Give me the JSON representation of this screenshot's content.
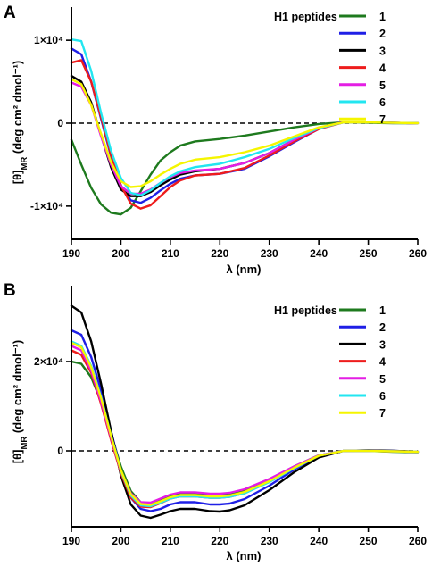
{
  "colors": {
    "s1": "#1e7a1e",
    "s2": "#1f1fe6",
    "s3": "#000000",
    "s4": "#ee1c1c",
    "s5": "#e41ee4",
    "s6": "#22e6f0",
    "s7": "#f5f500"
  },
  "chart_data": [
    {
      "panel": "A",
      "type": "line",
      "xlabel": "λ (nm)",
      "ylabel_main": "[θ]",
      "ylabel_sub": "MR",
      "ylabel_unit": " (deg cm² dmol⁻¹)",
      "legend_title": "H1 peptides",
      "xlim": [
        190,
        260
      ],
      "ylim": [
        -14000,
        14000
      ],
      "xticks": [
        190,
        200,
        210,
        220,
        230,
        240,
        250,
        260
      ],
      "xtick_labels": [
        "190",
        "200",
        "210",
        "220",
        "230",
        "240",
        "250",
        "260"
      ],
      "yticks": [
        10000,
        0,
        -10000
      ],
      "ytick_labels": [
        "1×10⁴",
        "0",
        "-1×10⁴"
      ],
      "x": [
        190,
        192,
        194,
        196,
        198,
        200,
        202,
        204,
        206,
        208,
        210,
        212,
        215,
        220,
        225,
        230,
        235,
        240,
        245,
        250,
        255,
        260
      ],
      "series": [
        {
          "name": "1",
          "color_key": "s1",
          "values": [
            -2000,
            -5000,
            -7800,
            -9800,
            -10800,
            -11000,
            -10200,
            -8200,
            -6200,
            -4500,
            -3500,
            -2700,
            -2200,
            -1900,
            -1500,
            -1000,
            -500,
            -100,
            100,
            50,
            0,
            0
          ]
        },
        {
          "name": "2",
          "color_key": "s2",
          "values": [
            9000,
            8300,
            5000,
            500,
            -4000,
            -7500,
            -9300,
            -9600,
            -9000,
            -8100,
            -7300,
            -6700,
            -6300,
            -6100,
            -5500,
            -4000,
            -2300,
            -700,
            200,
            150,
            50,
            0
          ]
        },
        {
          "name": "3",
          "color_key": "s3",
          "values": [
            5700,
            5000,
            2500,
            -1500,
            -5300,
            -8000,
            -8800,
            -8800,
            -8300,
            -7500,
            -6800,
            -6200,
            -5800,
            -5500,
            -4800,
            -3600,
            -2000,
            -600,
            150,
            150,
            50,
            0
          ]
        },
        {
          "name": "4",
          "color_key": "s4",
          "values": [
            7300,
            7600,
            5000,
            700,
            -3800,
            -7500,
            -9700,
            -10300,
            -9900,
            -8800,
            -7700,
            -6900,
            -6300,
            -6100,
            -5400,
            -3900,
            -2200,
            -700,
            100,
            100,
            50,
            0
          ]
        },
        {
          "name": "5",
          "color_key": "s5",
          "values": [
            4900,
            4400,
            2200,
            -1600,
            -5000,
            -7600,
            -8500,
            -8500,
            -8000,
            -7200,
            -6500,
            -6000,
            -5700,
            -5500,
            -4800,
            -3600,
            -2000,
            -600,
            150,
            150,
            50,
            0
          ]
        },
        {
          "name": "6",
          "color_key": "s6",
          "values": [
            10100,
            9900,
            6300,
            1200,
            -3300,
            -6600,
            -8400,
            -8700,
            -8100,
            -7200,
            -6400,
            -5800,
            -5300,
            -4900,
            -4100,
            -3100,
            -1800,
            -600,
            100,
            100,
            50,
            0
          ]
        },
        {
          "name": "7",
          "color_key": "s7",
          "values": [
            5300,
            4700,
            2200,
            -1300,
            -4700,
            -7000,
            -7700,
            -7600,
            -7000,
            -6200,
            -5500,
            -4900,
            -4400,
            -4100,
            -3500,
            -2700,
            -1600,
            -500,
            100,
            100,
            50,
            0
          ]
        }
      ]
    },
    {
      "panel": "B",
      "type": "line",
      "xlabel": "λ (nm)",
      "ylabel_main": "[θ]",
      "ylabel_sub": "MR",
      "ylabel_unit": " (deg cm² dmol⁻¹)",
      "legend_title": "H1 peptides",
      "xlim": [
        190,
        260
      ],
      "ylim": [
        -17000,
        37000
      ],
      "xticks": [
        190,
        200,
        210,
        220,
        230,
        240,
        250,
        260
      ],
      "xtick_labels": [
        "190",
        "200",
        "210",
        "220",
        "230",
        "240",
        "250",
        "260"
      ],
      "yticks": [
        20000,
        0
      ],
      "ytick_labels": [
        "2×10⁴",
        "0"
      ],
      "x": [
        190,
        192,
        194,
        196,
        198,
        200,
        202,
        204,
        206,
        208,
        210,
        212,
        215,
        218,
        220,
        222,
        225,
        230,
        235,
        240,
        245,
        250,
        255,
        260
      ],
      "series": [
        {
          "name": "1",
          "color_key": "s1",
          "values": [
            20000,
            19500,
            16500,
            11000,
            4000,
            -3500,
            -9000,
            -11500,
            -12000,
            -11000,
            -10000,
            -9500,
            -9500,
            -9700,
            -9700,
            -9600,
            -8800,
            -6500,
            -3500,
            -1000,
            0,
            0,
            -200,
            -300
          ]
        },
        {
          "name": "2",
          "color_key": "s2",
          "values": [
            27000,
            26000,
            21000,
            13500,
            4500,
            -4500,
            -10500,
            -13000,
            -13500,
            -13000,
            -12000,
            -11500,
            -11500,
            -12000,
            -12000,
            -11800,
            -10800,
            -7800,
            -4200,
            -1200,
            0,
            100,
            0,
            -200
          ]
        },
        {
          "name": "3",
          "color_key": "s3",
          "values": [
            32500,
            31000,
            24500,
            15000,
            4500,
            -5500,
            -12000,
            -14500,
            -15000,
            -14300,
            -13500,
            -13000,
            -13000,
            -13500,
            -13600,
            -13300,
            -12200,
            -8800,
            -4800,
            -1500,
            0,
            100,
            0,
            -200
          ]
        },
        {
          "name": "4",
          "color_key": "s4",
          "values": [
            22500,
            21500,
            17500,
            10500,
            2500,
            -5000,
            -10500,
            -12500,
            -12600,
            -11700,
            -10700,
            -10200,
            -10200,
            -10500,
            -10500,
            -10300,
            -9500,
            -6900,
            -3800,
            -1100,
            0,
            0,
            -100,
            -200
          ]
        },
        {
          "name": "5",
          "color_key": "s5",
          "values": [
            23500,
            22500,
            18000,
            11000,
            3000,
            -4500,
            -9500,
            -11500,
            -11600,
            -10700,
            -9800,
            -9300,
            -9300,
            -9600,
            -9600,
            -9400,
            -8600,
            -6300,
            -3500,
            -1000,
            0,
            0,
            -100,
            -200
          ]
        },
        {
          "name": "6",
          "color_key": "s6",
          "values": [
            24500,
            23500,
            19000,
            12000,
            3500,
            -4500,
            -10000,
            -12200,
            -12400,
            -11600,
            -10700,
            -10200,
            -10200,
            -10500,
            -10500,
            -10300,
            -9500,
            -7000,
            -3900,
            -1100,
            0,
            0,
            -100,
            -200
          ]
        },
        {
          "name": "7",
          "color_key": "s7",
          "values": [
            24200,
            23200,
            18700,
            11800,
            3400,
            -4300,
            -9700,
            -11900,
            -12100,
            -11300,
            -10400,
            -9900,
            -9900,
            -10200,
            -10200,
            -10000,
            -9200,
            -6800,
            -3800,
            -1100,
            0,
            0,
            -100,
            -200
          ]
        }
      ]
    }
  ]
}
